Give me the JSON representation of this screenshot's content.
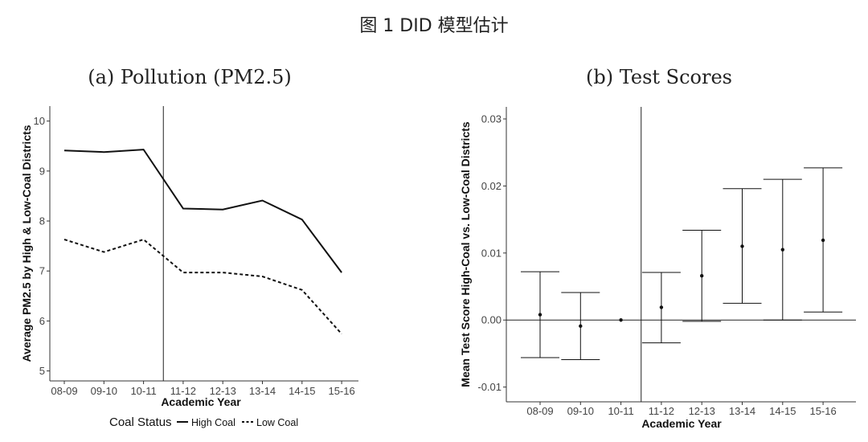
{
  "figure_title": "图 1 DID 模型估计",
  "chart_data": [
    {
      "type": "line",
      "title": "(a) Pollution (PM2.5)",
      "xlabel": "Academic Year",
      "ylabel": "Average PM2.5 by High & Low-Coal Districts",
      "categories": [
        "08-09",
        "09-10",
        "10-11",
        "11-12",
        "12-13",
        "13-14",
        "14-15",
        "15-16"
      ],
      "ylim": [
        4.8,
        10.3
      ],
      "yticks": [
        5,
        6,
        7,
        8,
        9,
        10
      ],
      "vline_after_index": 2,
      "legend_title": "Coal Status",
      "legend_position": "bottom",
      "series": [
        {
          "name": "High Coal",
          "style": "solid",
          "values": [
            9.41,
            9.38,
            9.43,
            8.25,
            8.23,
            8.41,
            8.03,
            6.97
          ]
        },
        {
          "name": "Low Coal",
          "style": "dashed",
          "values": [
            7.63,
            7.38,
            7.63,
            6.97,
            6.97,
            6.89,
            6.62,
            5.74
          ]
        }
      ]
    },
    {
      "type": "errorbar",
      "title": "(b) Test Scores",
      "xlabel": "Academic Year",
      "ylabel": "Mean Test Score High-Coal vs. Low-Coal Districts",
      "categories": [
        "08-09",
        "09-10",
        "10-11",
        "11-12",
        "12-13",
        "13-14",
        "14-15",
        "15-16"
      ],
      "ylim": [
        -0.0122,
        0.0318
      ],
      "yticks": [
        -0.01,
        0.0,
        0.01,
        0.02,
        0.03
      ],
      "ytick_labels": [
        "-0.01",
        "0.00",
        "0.01",
        "0.02",
        "0.03"
      ],
      "vline_after_index": 2,
      "hline": 0,
      "points": [
        {
          "estimate": 0.0008,
          "lower": -0.0056,
          "upper": 0.0072
        },
        {
          "estimate": -0.0009,
          "lower": -0.0059,
          "upper": 0.0041
        },
        {
          "estimate": 0.0,
          "lower": 0.0,
          "upper": 0.0
        },
        {
          "estimate": 0.0019,
          "lower": -0.0034,
          "upper": 0.0071
        },
        {
          "estimate": 0.0066,
          "lower": -0.0002,
          "upper": 0.0134
        },
        {
          "estimate": 0.011,
          "lower": 0.0025,
          "upper": 0.0196
        },
        {
          "estimate": 0.0105,
          "lower": 0.0,
          "upper": 0.021
        },
        {
          "estimate": 0.0119,
          "lower": 0.0012,
          "upper": 0.0227
        }
      ]
    }
  ]
}
